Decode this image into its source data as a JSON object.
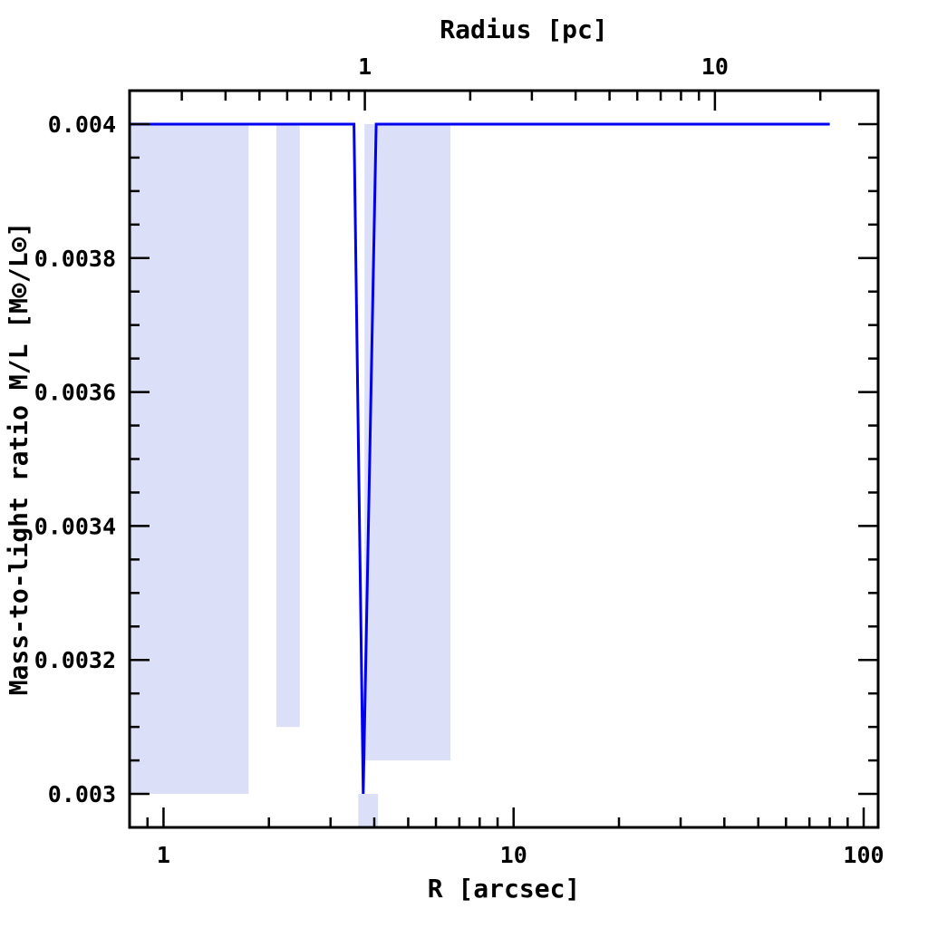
{
  "chart_data": {
    "type": "line",
    "xlabel": "R [arcsec]",
    "ylabel": "Mass-to-light ratio M/L [M⊙/L⊙]",
    "top_axis_label": "Radius [pc]",
    "x_scale": "log",
    "xlim": [
      0.8,
      110
    ],
    "ylim": [
      0.00295,
      0.00405
    ],
    "x_ticks": [
      1,
      10,
      100
    ],
    "x_tick_labels": [
      "1",
      "10",
      "100"
    ],
    "y_ticks": [
      0.003,
      0.0032,
      0.0034,
      0.0036,
      0.0038,
      0.004
    ],
    "y_tick_labels": [
      "0.003",
      "0.0032",
      "0.0034",
      "0.0036",
      "0.0038",
      "0.004"
    ],
    "top_ticks_pc": [
      1,
      10
    ],
    "top_tick_labels": [
      "1",
      "10"
    ],
    "top_axis_pc_per_arcsec": 0.266,
    "grid": false,
    "series": [
      {
        "color": "#0000ee",
        "x": [
          0.8,
          3.5,
          3.72,
          4.05,
          80
        ],
        "y": [
          0.004,
          0.004,
          0.003,
          0.004,
          0.004
        ]
      }
    ],
    "uncertainty_bands": [
      {
        "color": "#dcdff8",
        "x0": 0.8,
        "x1": 1.75,
        "y0": 0.003,
        "y1": 0.004
      },
      {
        "color": "#dcdff8",
        "x0": 2.1,
        "x1": 2.45,
        "y0": 0.0031,
        "y1": 0.004
      },
      {
        "color": "#dcdff8",
        "x0": 3.75,
        "x1": 6.6,
        "y0": 0.00305,
        "y1": 0.004
      },
      {
        "color": "#dcdff8",
        "x0": 3.6,
        "x1": 4.1,
        "y0": 0.00295,
        "y1": 0.003
      }
    ]
  }
}
